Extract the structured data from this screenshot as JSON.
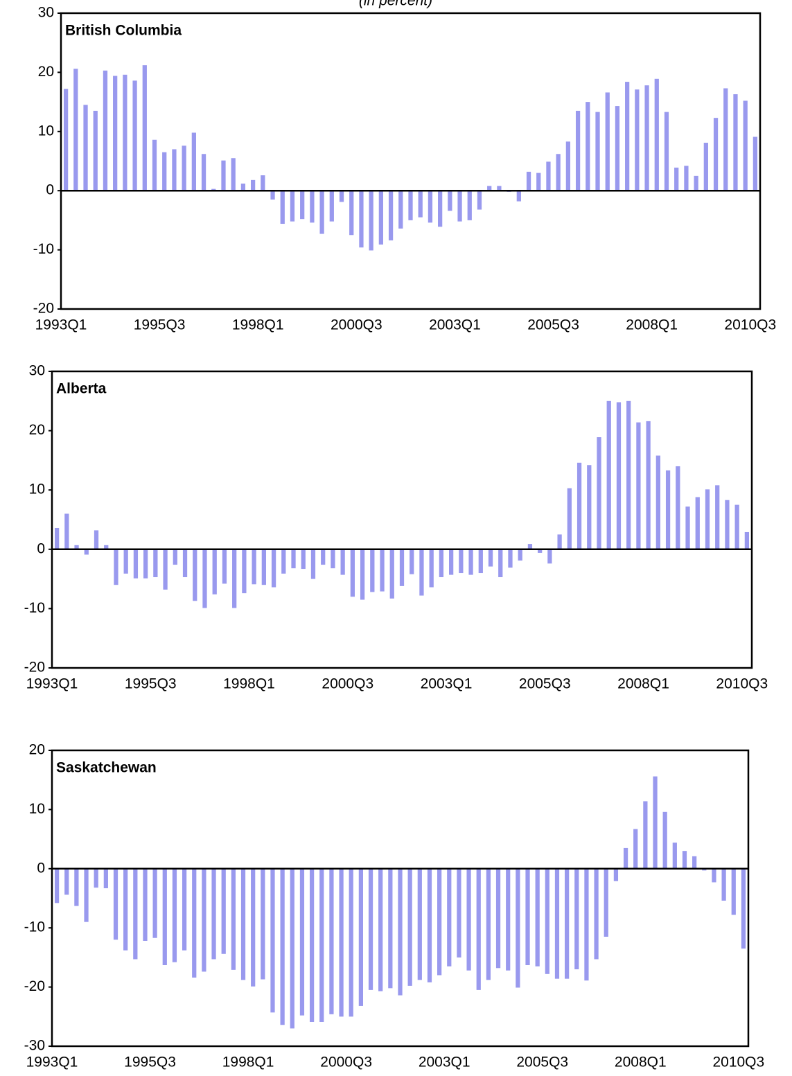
{
  "chart_data": [
    {
      "type": "bar",
      "title": "British Columbia",
      "subtitle": "(in percent)",
      "categories": [
        "1993Q1",
        null,
        null,
        null,
        null,
        null,
        null,
        null,
        null,
        null,
        "1995Q3",
        null,
        null,
        null,
        null,
        null,
        null,
        null,
        null,
        null,
        "1998Q1",
        null,
        null,
        null,
        null,
        null,
        null,
        null,
        null,
        null,
        "2000Q3",
        null,
        null,
        null,
        null,
        null,
        null,
        null,
        null,
        null,
        "2003Q1",
        null,
        null,
        null,
        null,
        null,
        null,
        null,
        null,
        null,
        "2005Q3",
        null,
        null,
        null,
        null,
        null,
        null,
        null,
        null,
        null,
        "2008Q1",
        null,
        null,
        null,
        null,
        null,
        null,
        null,
        null,
        null,
        "2010Q3"
      ],
      "values": [
        17.2,
        20.6,
        14.5,
        13.5,
        20.3,
        19.4,
        19.6,
        18.6,
        21.2,
        8.6,
        6.5,
        7.0,
        7.6,
        9.8,
        6.2,
        0.3,
        5.1,
        5.5,
        1.2,
        1.8,
        2.6,
        -1.5,
        -5.6,
        -5.2,
        -4.8,
        -5.4,
        -7.3,
        -5.2,
        -1.9,
        -7.5,
        -9.6,
        -10.1,
        -9.1,
        -8.4,
        -6.4,
        -5.0,
        -4.5,
        -5.4,
        -6.1,
        -3.4,
        -5.2,
        -5.0,
        -3.2,
        0.8,
        0.8,
        -0.2,
        -1.8,
        3.2,
        3.0,
        4.9,
        6.2,
        8.3,
        13.5,
        15.0,
        13.3,
        16.6,
        14.3,
        18.4,
        17.1,
        17.8,
        18.9,
        13.3,
        3.9,
        4.2,
        2.5,
        8.1,
        12.3,
        17.3,
        16.3,
        15.2,
        9.1
      ],
      "color": "#9999ee",
      "ylim": [
        -20,
        30
      ],
      "yticks": [
        -20,
        -10,
        0,
        10,
        20,
        30
      ]
    },
    {
      "type": "bar",
      "title": "Alberta",
      "categories": [
        "1993Q1",
        null,
        null,
        null,
        null,
        null,
        null,
        null,
        null,
        null,
        "1995Q3",
        null,
        null,
        null,
        null,
        null,
        null,
        null,
        null,
        null,
        "1998Q1",
        null,
        null,
        null,
        null,
        null,
        null,
        null,
        null,
        null,
        "2000Q3",
        null,
        null,
        null,
        null,
        null,
        null,
        null,
        null,
        null,
        "2003Q1",
        null,
        null,
        null,
        null,
        null,
        null,
        null,
        null,
        null,
        "2005Q3",
        null,
        null,
        null,
        null,
        null,
        null,
        null,
        null,
        null,
        "2008Q1",
        null,
        null,
        null,
        null,
        null,
        null,
        null,
        null,
        null,
        "2010Q3"
      ],
      "values": [
        3.6,
        6.0,
        0.7,
        -0.9,
        3.2,
        0.7,
        -6.0,
        -4.1,
        -4.9,
        -4.9,
        -4.7,
        -6.8,
        -2.6,
        -4.7,
        -8.7,
        -9.9,
        -7.6,
        -5.8,
        -9.9,
        -7.4,
        -5.9,
        -6.0,
        -6.4,
        -4.1,
        -3.2,
        -3.3,
        -5.0,
        -2.6,
        -3.2,
        -4.3,
        -8.0,
        -8.5,
        -7.2,
        -7.1,
        -8.3,
        -6.2,
        -4.2,
        -7.8,
        -6.4,
        -4.7,
        -4.3,
        -4.0,
        -4.3,
        -4.0,
        -2.9,
        -4.7,
        -3.1,
        -1.9,
        0.9,
        -0.6,
        -2.4,
        2.5,
        10.3,
        14.6,
        14.2,
        18.9,
        25.0,
        24.8,
        25.0,
        21.4,
        21.6,
        15.8,
        13.3,
        14.0,
        7.2,
        8.8,
        10.1,
        10.8,
        8.3,
        7.5,
        2.9
      ],
      "color": "#9999ee",
      "ylim": [
        -20,
        30
      ],
      "yticks": [
        -20,
        -10,
        0,
        10,
        20,
        30
      ]
    },
    {
      "type": "bar",
      "title": "Saskatchewan",
      "categories": [
        "1993Q1",
        null,
        null,
        null,
        null,
        null,
        null,
        null,
        null,
        null,
        "1995Q3",
        null,
        null,
        null,
        null,
        null,
        null,
        null,
        null,
        null,
        "1998Q1",
        null,
        null,
        null,
        null,
        null,
        null,
        null,
        null,
        null,
        "2000Q3",
        null,
        null,
        null,
        null,
        null,
        null,
        null,
        null,
        null,
        "2003Q1",
        null,
        null,
        null,
        null,
        null,
        null,
        null,
        null,
        null,
        "2005Q3",
        null,
        null,
        null,
        null,
        null,
        null,
        null,
        null,
        null,
        "2008Q1",
        null,
        null,
        null,
        null,
        null,
        null,
        null,
        null,
        null,
        "2010Q3"
      ],
      "values": [
        -5.8,
        -4.4,
        -6.3,
        -9.0,
        -3.2,
        -3.3,
        -12.0,
        -13.8,
        -15.3,
        -12.2,
        -11.7,
        -16.3,
        -15.8,
        -13.8,
        -18.4,
        -17.4,
        -15.3,
        -14.4,
        -17.1,
        -18.8,
        -19.9,
        -18.7,
        -24.3,
        -26.4,
        -27.0,
        -24.8,
        -25.9,
        -25.9,
        -24.6,
        -25.0,
        -25.0,
        -23.2,
        -20.5,
        -20.7,
        -20.2,
        -21.4,
        -19.8,
        -18.8,
        -19.2,
        -18.0,
        -16.5,
        -15.0,
        -17.2,
        -20.5,
        -18.8,
        -16.8,
        -17.2,
        -20.1,
        -16.3,
        -16.5,
        -17.8,
        -18.6,
        -18.6,
        -17.0,
        -18.9,
        -15.3,
        -11.5,
        -2.1,
        3.5,
        6.7,
        11.4,
        15.6,
        9.6,
        4.4,
        3.0,
        2.1,
        -0.3,
        -2.3,
        -5.4,
        -7.8,
        -13.5
      ],
      "color": "#9999ee",
      "ylim": [
        -30,
        20
      ],
      "yticks": [
        -30,
        -20,
        -10,
        0,
        10,
        20
      ]
    }
  ]
}
